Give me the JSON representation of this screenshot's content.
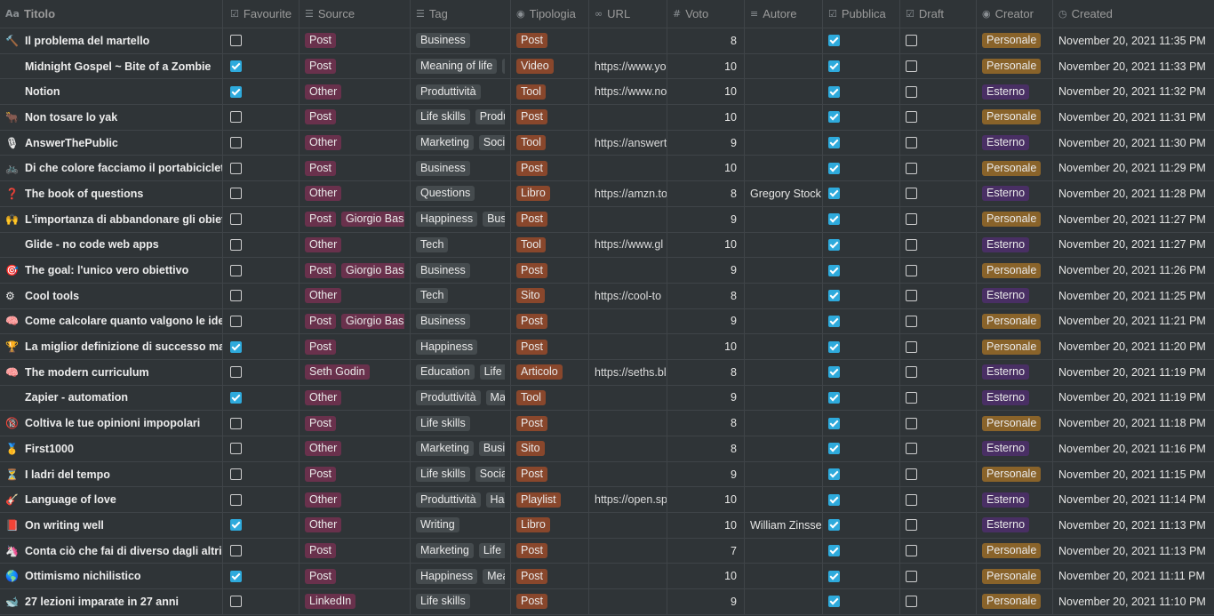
{
  "columns": {
    "titolo": "Titolo",
    "favourite": "Favourite",
    "source": "Source",
    "tag": "Tag",
    "tipologia": "Tipologia",
    "url": "URL",
    "voto": "Voto",
    "autore": "Autore",
    "pubblica": "Pubblica",
    "draft": "Draft",
    "creator": "Creator",
    "created": "Created"
  },
  "colors": {
    "pink": "#69314c",
    "gray": "#454b4e",
    "orange": "#89472c",
    "yellow": "#89632a",
    "purple": "#492f64",
    "checkbox": "#2eaadc"
  },
  "rows": [
    {
      "icon": "🔨",
      "title": "Il problema del martello",
      "fav": false,
      "source": [
        "Post"
      ],
      "tags": [
        "Business"
      ],
      "tipologia": "Post",
      "url": "",
      "voto": "8",
      "autore": "",
      "pubblica": true,
      "draft": false,
      "creator": "Personale",
      "created": "November 20, 2021 11:35 PM"
    },
    {
      "icon": "",
      "title": "Midnight Gospel ~ Bite of a Zombie",
      "fav": true,
      "source": [
        "Post"
      ],
      "tags": [
        "Meaning of life",
        "B"
      ],
      "tipologia": "Video",
      "url": "https://www.yo",
      "voto": "10",
      "autore": "",
      "pubblica": true,
      "draft": false,
      "creator": "Personale",
      "created": "November 20, 2021 11:33 PM"
    },
    {
      "icon": "",
      "title": "Notion",
      "fav": true,
      "source": [
        "Other"
      ],
      "tags": [
        "Produttività"
      ],
      "tipologia": "Tool",
      "url": "https://www.no",
      "voto": "10",
      "autore": "",
      "pubblica": true,
      "draft": false,
      "creator": "Esterno",
      "created": "November 20, 2021 11:32 PM"
    },
    {
      "icon": "🐂",
      "title": "Non tosare lo yak",
      "fav": false,
      "source": [
        "Post"
      ],
      "tags": [
        "Life skills",
        "Produt"
      ],
      "tipologia": "Post",
      "url": "",
      "voto": "10",
      "autore": "",
      "pubblica": true,
      "draft": false,
      "creator": "Personale",
      "created": "November 20, 2021 11:31 PM"
    },
    {
      "icon": "🎙",
      "title": "AnswerThePublic",
      "fav": false,
      "source": [
        "Other"
      ],
      "tags": [
        "Marketing",
        "Socia"
      ],
      "tipologia": "Tool",
      "url": "https://answert",
      "voto": "9",
      "autore": "",
      "pubblica": true,
      "draft": false,
      "creator": "Esterno",
      "created": "November 20, 2021 11:30 PM"
    },
    {
      "icon": "🚲",
      "title": "Di che colore facciamo il portabiciclette",
      "fav": false,
      "source": [
        "Post"
      ],
      "tags": [
        "Business"
      ],
      "tipologia": "Post",
      "url": "",
      "voto": "10",
      "autore": "",
      "pubblica": true,
      "draft": false,
      "creator": "Personale",
      "created": "November 20, 2021 11:29 PM"
    },
    {
      "icon": "❓",
      "title": "The book of questions",
      "fav": false,
      "source": [
        "Other"
      ],
      "tags": [
        "Questions"
      ],
      "tipologia": "Libro",
      "url": "https://amzn.to",
      "voto": "8",
      "autore": "Gregory Stock",
      "pubblica": true,
      "draft": false,
      "creator": "Esterno",
      "created": "November 20, 2021 11:28 PM"
    },
    {
      "icon": "🙌",
      "title": "L'importanza di abbandonare gli obiettivi",
      "fav": false,
      "source": [
        "Post",
        "Giorgio Basag"
      ],
      "tags": [
        "Happiness",
        "Busin"
      ],
      "tipologia": "Post",
      "url": "",
      "voto": "9",
      "autore": "",
      "pubblica": true,
      "draft": false,
      "creator": "Personale",
      "created": "November 20, 2021 11:27 PM"
    },
    {
      "icon": "",
      "title": "Glide - no code web apps",
      "fav": false,
      "source": [
        "Other"
      ],
      "tags": [
        "Tech"
      ],
      "tipologia": "Tool",
      "url": "https://www.gl",
      "voto": "10",
      "autore": "",
      "pubblica": true,
      "draft": false,
      "creator": "Esterno",
      "created": "November 20, 2021 11:27 PM"
    },
    {
      "icon": "🎯",
      "title": "The goal: l'unico vero obiettivo",
      "fav": false,
      "source": [
        "Post",
        "Giorgio Basag"
      ],
      "tags": [
        "Business"
      ],
      "tipologia": "Post",
      "url": "",
      "voto": "9",
      "autore": "",
      "pubblica": true,
      "draft": false,
      "creator": "Personale",
      "created": "November 20, 2021 11:26 PM"
    },
    {
      "icon": "⚙",
      "title": "Cool tools",
      "fav": false,
      "source": [
        "Other"
      ],
      "tags": [
        "Tech"
      ],
      "tipologia": "Sito",
      "url": "https://cool-to",
      "voto": "8",
      "autore": "",
      "pubblica": true,
      "draft": false,
      "creator": "Esterno",
      "created": "November 20, 2021 11:25 PM"
    },
    {
      "icon": "🧠",
      "title": "Come calcolare quanto valgono le idee",
      "fav": false,
      "source": [
        "Post",
        "Giorgio Basag"
      ],
      "tags": [
        "Business"
      ],
      "tipologia": "Post",
      "url": "",
      "voto": "9",
      "autore": "",
      "pubblica": true,
      "draft": false,
      "creator": "Personale",
      "created": "November 20, 2021 11:21 PM"
    },
    {
      "icon": "🏆",
      "title": "La miglior definizione di successo mai scritta",
      "fav": true,
      "source": [
        "Post"
      ],
      "tags": [
        "Happiness"
      ],
      "tipologia": "Post",
      "url": "",
      "voto": "10",
      "autore": "",
      "pubblica": true,
      "draft": false,
      "creator": "Personale",
      "created": "November 20, 2021 11:20 PM"
    },
    {
      "icon": "🧠",
      "title": "The modern curriculum",
      "fav": false,
      "source": [
        "Seth Godin"
      ],
      "tags": [
        "Education",
        "Life sk"
      ],
      "tipologia": "Articolo",
      "url": "https://seths.bl",
      "voto": "8",
      "autore": "",
      "pubblica": true,
      "draft": false,
      "creator": "Esterno",
      "created": "November 20, 2021 11:19 PM"
    },
    {
      "icon": "",
      "title": "Zapier - automation",
      "fav": true,
      "source": [
        "Other"
      ],
      "tags": [
        "Produttività",
        "Mar"
      ],
      "tipologia": "Tool",
      "url": "",
      "voto": "9",
      "autore": "",
      "pubblica": true,
      "draft": false,
      "creator": "Esterno",
      "created": "November 20, 2021 11:19 PM"
    },
    {
      "icon": "🔞",
      "title": "Coltiva le tue opinioni impopolari",
      "fav": false,
      "source": [
        "Post"
      ],
      "tags": [
        "Life skills"
      ],
      "tipologia": "Post",
      "url": "",
      "voto": "8",
      "autore": "",
      "pubblica": true,
      "draft": false,
      "creator": "Personale",
      "created": "November 20, 2021 11:18 PM"
    },
    {
      "icon": "🥇",
      "title": "First1000",
      "fav": false,
      "source": [
        "Other"
      ],
      "tags": [
        "Marketing",
        "Busin"
      ],
      "tipologia": "Sito",
      "url": "",
      "voto": "8",
      "autore": "",
      "pubblica": true,
      "draft": false,
      "creator": "Esterno",
      "created": "November 20, 2021 11:16 PM"
    },
    {
      "icon": "⏳",
      "title": "I ladri del tempo",
      "fav": false,
      "source": [
        "Post"
      ],
      "tags": [
        "Life skills",
        "Social I"
      ],
      "tipologia": "Post",
      "url": "",
      "voto": "9",
      "autore": "",
      "pubblica": true,
      "draft": false,
      "creator": "Personale",
      "created": "November 20, 2021 11:15 PM"
    },
    {
      "icon": "🎸",
      "title": "Language of love",
      "fav": false,
      "source": [
        "Other"
      ],
      "tags": [
        "Produttività",
        "Hap"
      ],
      "tipologia": "Playlist",
      "url": "https://open.sp",
      "voto": "10",
      "autore": "",
      "pubblica": true,
      "draft": false,
      "creator": "Esterno",
      "created": "November 20, 2021 11:14 PM"
    },
    {
      "icon": "📕",
      "title": "On writing well",
      "fav": true,
      "source": [
        "Other"
      ],
      "tags": [
        "Writing"
      ],
      "tipologia": "Libro",
      "url": "",
      "voto": "10",
      "autore": "William Zinsser",
      "pubblica": true,
      "draft": false,
      "creator": "Esterno",
      "created": "November 20, 2021 11:13 PM"
    },
    {
      "icon": "🦄",
      "title": "Conta ciò che fai di diverso dagli altri",
      "fav": false,
      "source": [
        "Post"
      ],
      "tags": [
        "Marketing",
        "Life sk"
      ],
      "tipologia": "Post",
      "url": "",
      "voto": "7",
      "autore": "",
      "pubblica": true,
      "draft": false,
      "creator": "Personale",
      "created": "November 20, 2021 11:13 PM"
    },
    {
      "icon": "🌎",
      "title": "Ottimismo nichilistico",
      "fav": true,
      "source": [
        "Post"
      ],
      "tags": [
        "Happiness",
        "Mean"
      ],
      "tipologia": "Post",
      "url": "",
      "voto": "10",
      "autore": "",
      "pubblica": true,
      "draft": false,
      "creator": "Personale",
      "created": "November 20, 2021 11:11 PM"
    },
    {
      "icon": "🐋",
      "title": "27 lezioni imparate in 27 anni",
      "fav": false,
      "source": [
        "LinkedIn"
      ],
      "tags": [
        "Life skills"
      ],
      "tipologia": "Post",
      "url": "",
      "voto": "9",
      "autore": "",
      "pubblica": true,
      "draft": false,
      "creator": "Personale",
      "created": "November 20, 2021 11:10 PM"
    }
  ]
}
